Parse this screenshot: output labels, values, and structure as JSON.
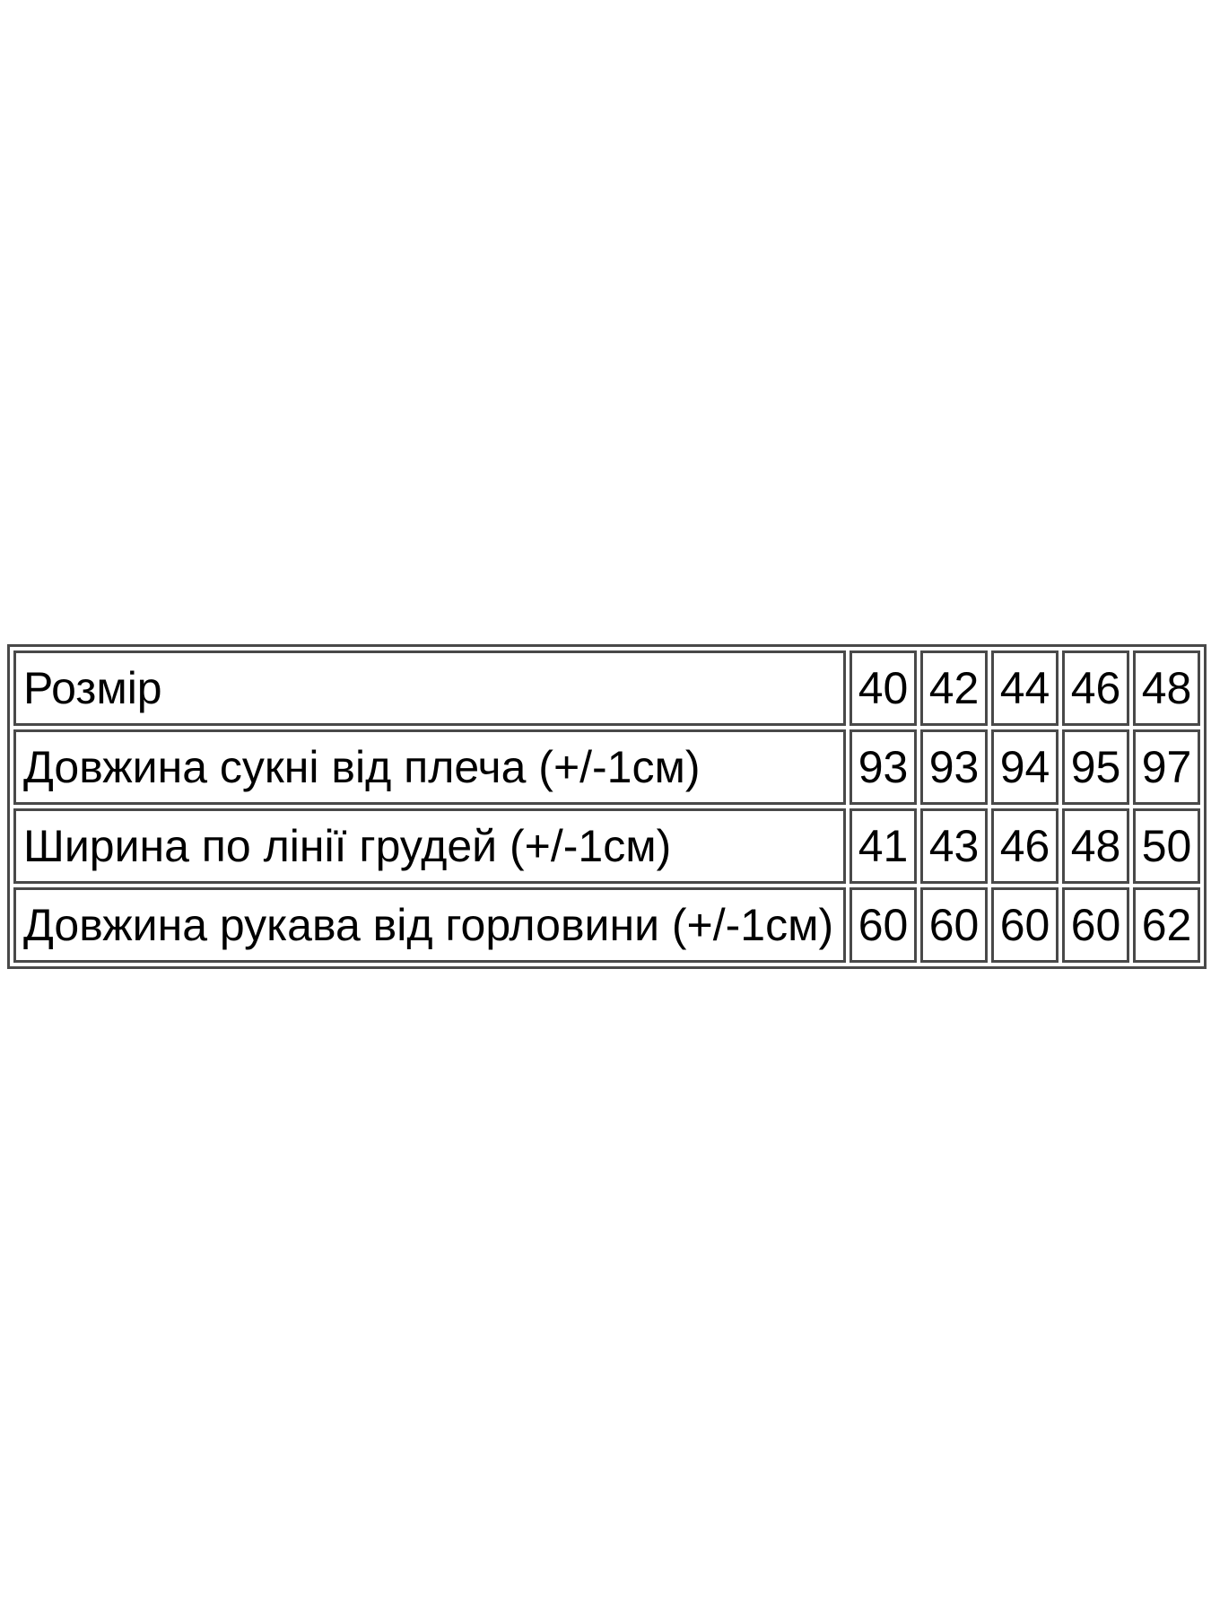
{
  "chart_data": {
    "type": "table",
    "title": "",
    "rows": [
      {
        "label": "Розмір",
        "values": [
          "40",
          "42",
          "44",
          "46",
          "48"
        ]
      },
      {
        "label": "Довжина сукні від плеча (+/-1см)",
        "values": [
          "93",
          "93",
          "94",
          "95",
          "97"
        ]
      },
      {
        "label": "Ширина по лінії грудей (+/-1см)",
        "values": [
          "41",
          "43",
          "46",
          "48",
          "50"
        ]
      },
      {
        "label": "Довжина рукава від горловини (+/-1см)",
        "values": [
          "60",
          "60",
          "60",
          "60",
          "62"
        ]
      }
    ]
  },
  "colors": {
    "border": "#494949",
    "text": "#000000",
    "background": "#ffffff"
  }
}
